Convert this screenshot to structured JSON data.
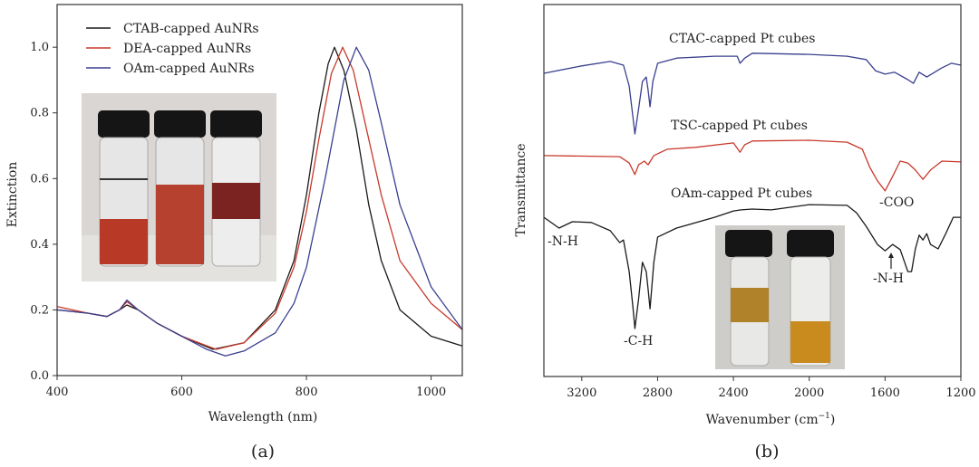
{
  "chart_data": [
    {
      "type": "line",
      "panel_label": "(a)",
      "xlabel": "Wavelength (nm)",
      "ylabel": "Extinction",
      "xlim": [
        400,
        1050
      ],
      "ylim": [
        0,
        1.13
      ],
      "xticks": [
        400,
        600,
        800,
        1000
      ],
      "yticks": [
        "0.0",
        "0.2",
        "0.4",
        "0.6",
        "0.8",
        "1.0"
      ],
      "grid": false,
      "legend_position": "top-left",
      "inset": "photo of three vials with red AuNR dispersions",
      "series": [
        {
          "name": "CTAB-capped AuNRs",
          "color": "#1a1a1a",
          "x": [
            400,
            450,
            480,
            500,
            512,
            530,
            560,
            600,
            650,
            700,
            750,
            780,
            800,
            820,
            835,
            845,
            860,
            880,
            900,
            920,
            950,
            1000,
            1050
          ],
          "y": [
            0.2,
            0.19,
            0.18,
            0.2,
            0.215,
            0.2,
            0.16,
            0.12,
            0.08,
            0.1,
            0.2,
            0.35,
            0.55,
            0.8,
            0.95,
            1.0,
            0.93,
            0.75,
            0.52,
            0.35,
            0.2,
            0.12,
            0.09
          ]
        },
        {
          "name": "DEA-capped AuNRs",
          "color": "#c8392b",
          "x": [
            400,
            450,
            480,
            500,
            512,
            530,
            560,
            600,
            655,
            700,
            750,
            780,
            800,
            820,
            840,
            858,
            875,
            900,
            920,
            950,
            1000,
            1050
          ],
          "y": [
            0.21,
            0.19,
            0.18,
            0.2,
            0.225,
            0.2,
            0.16,
            0.12,
            0.08,
            0.1,
            0.19,
            0.33,
            0.5,
            0.72,
            0.92,
            1.0,
            0.93,
            0.72,
            0.55,
            0.35,
            0.22,
            0.14
          ]
        },
        {
          "name": "OAm-capped AuNRs",
          "color": "#3a3f8f",
          "x": [
            400,
            450,
            480,
            500,
            512,
            530,
            560,
            600,
            640,
            670,
            700,
            750,
            780,
            800,
            830,
            860,
            880,
            900,
            920,
            950,
            1000,
            1050
          ],
          "y": [
            0.2,
            0.19,
            0.18,
            0.2,
            0.23,
            0.2,
            0.16,
            0.12,
            0.08,
            0.06,
            0.075,
            0.13,
            0.22,
            0.33,
            0.6,
            0.9,
            1.0,
            0.93,
            0.77,
            0.52,
            0.27,
            0.14
          ]
        }
      ]
    },
    {
      "type": "line",
      "panel_label": "(b)",
      "xlabel": "Wavenumber (cm",
      "xlabel_sup": "−1",
      "xlabel_end": ")",
      "ylabel": "Transmittance",
      "xlim": [
        3400,
        1200
      ],
      "x_reversed": true,
      "ylim": [
        0,
        1
      ],
      "y_units": "a.u. (no tick labels)",
      "xticks": [
        3200,
        2800,
        2400,
        2000,
        1600,
        1200
      ],
      "grid": false,
      "inset": "photo of two vials with amber dispersions",
      "series": [
        {
          "name": "CTAC-capped Pt cubes",
          "color": "#3a3f8f",
          "x": [
            3400,
            3200,
            3050,
            2980,
            2950,
            2930,
            2920,
            2900,
            2880,
            2860,
            2850,
            2840,
            2825,
            2800,
            2700,
            2500,
            2380,
            2365,
            2340,
            2300,
            2000,
            1800,
            1700,
            1650,
            1600,
            1550,
            1480,
            1450,
            1420,
            1380,
            1300,
            1250,
            1200
          ],
          "y": [
            0.815,
            0.835,
            0.847,
            0.837,
            0.781,
            0.696,
            0.652,
            0.72,
            0.793,
            0.805,
            0.769,
            0.725,
            0.793,
            0.842,
            0.856,
            0.861,
            0.861,
            0.842,
            0.856,
            0.869,
            0.866,
            0.861,
            0.852,
            0.822,
            0.813,
            0.818,
            0.798,
            0.788,
            0.818,
            0.805,
            0.83,
            0.842,
            0.837
          ]
        },
        {
          "name": "TSC-capped Pt cubes",
          "color": "#c8392b",
          "x": [
            3400,
            3000,
            2950,
            2920,
            2900,
            2870,
            2850,
            2820,
            2750,
            2600,
            2400,
            2365,
            2340,
            2300,
            2000,
            1800,
            1720,
            1680,
            1640,
            1600,
            1560,
            1520,
            1480,
            1440,
            1400,
            1360,
            1300,
            1200
          ],
          "y": [
            0.594,
            0.591,
            0.574,
            0.543,
            0.569,
            0.579,
            0.569,
            0.594,
            0.611,
            0.616,
            0.628,
            0.603,
            0.623,
            0.633,
            0.635,
            0.63,
            0.611,
            0.562,
            0.526,
            0.499,
            0.538,
            0.579,
            0.574,
            0.555,
            0.53,
            0.555,
            0.579,
            0.577
          ]
        },
        {
          "name": "OAm-capped Pt cubes",
          "color": "#1a1a1a",
          "x": [
            3400,
            3320,
            3250,
            3150,
            3050,
            3000,
            2980,
            2950,
            2930,
            2920,
            2900,
            2880,
            2860,
            2850,
            2840,
            2820,
            2800,
            2700,
            2500,
            2400,
            2360,
            2300,
            2200,
            2000,
            1800,
            1750,
            1700,
            1640,
            1600,
            1560,
            1520,
            1480,
            1460,
            1440,
            1420,
            1400,
            1380,
            1360,
            1320,
            1280,
            1240,
            1200
          ],
          "y": [
            0.428,
            0.399,
            0.416,
            0.414,
            0.392,
            0.36,
            0.367,
            0.282,
            0.185,
            0.129,
            0.209,
            0.307,
            0.282,
            0.234,
            0.182,
            0.307,
            0.375,
            0.399,
            0.428,
            0.445,
            0.448,
            0.45,
            0.448,
            0.462,
            0.46,
            0.44,
            0.404,
            0.355,
            0.338,
            0.355,
            0.341,
            0.282,
            0.282,
            0.343,
            0.38,
            0.367,
            0.384,
            0.355,
            0.343,
            0.384,
            0.428,
            0.428
          ]
        }
      ],
      "annotations": [
        "-N-H",
        "-C-H",
        "-COO",
        "-N-H"
      ]
    }
  ]
}
